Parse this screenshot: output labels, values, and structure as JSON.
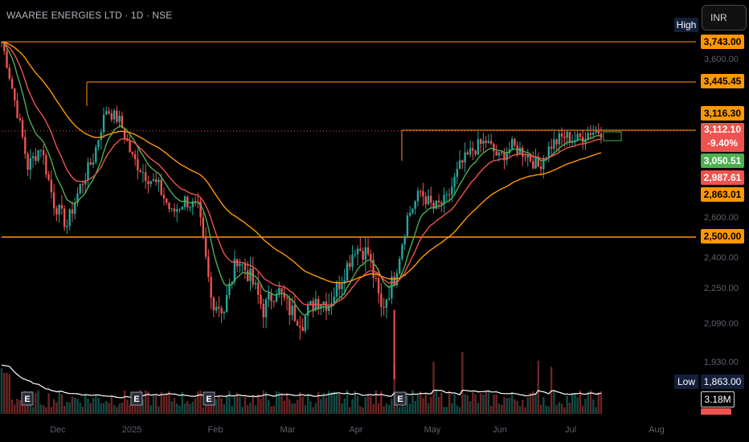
{
  "header": {
    "title": "WAAREE ENERGIES LTD · 1D · NSE"
  },
  "currency": "INR",
  "labels": {
    "high": "High",
    "low": "Low"
  },
  "price_tags": {
    "high_value": "3,743.00",
    "level_3445": "3,445.45",
    "recent_high": "3,116.30",
    "last_price": "3,112.10",
    "change_pct": "-9.40%",
    "ema_short": "3,050.51",
    "ema_mid": "2,987.61",
    "ema_long": "2,863.01",
    "support": "2,500.00",
    "low_value": "1,863.00",
    "volume": "3.18M"
  },
  "colors": {
    "bull": "#26a69a",
    "bear": "#ef5350",
    "level": "#ff9800",
    "ema_short": "#4caf50",
    "ema_mid": "#ef5350",
    "ema_long": "#ff9800",
    "volume_ma": "#ffffff"
  },
  "chart_data": {
    "type": "candlestick",
    "title": "WAAREE ENERGIES LTD · 1D · NSE",
    "y_ticks": [
      "3,600.00",
      "2,600.00",
      "2,400.00",
      "2,250.00",
      "2,090.00",
      "1,930.00"
    ],
    "y_tick_values": [
      3600,
      2600,
      2400,
      2250,
      2090,
      1930
    ],
    "x_ticks": [
      "Dec",
      "2025",
      "Feb",
      "Mar",
      "Apr",
      "May",
      "Jun",
      "Jul",
      "Aug"
    ],
    "ylim": [
      1780,
      3800
    ],
    "horizontal_levels": [
      3743.0,
      3445.45,
      3116.3,
      2500.0
    ],
    "last_price": 3112.1,
    "change_pct": -9.4,
    "earnings_markers": [
      "E",
      "E",
      "E",
      "E"
    ],
    "series": [
      {
        "name": "Price",
        "anchors": [
          [
            0,
            3743
          ],
          [
            5,
            3320
          ],
          [
            10,
            2900
          ],
          [
            15,
            3020
          ],
          [
            20,
            2680
          ],
          [
            25,
            2560
          ],
          [
            30,
            2780
          ],
          [
            35,
            2950
          ],
          [
            40,
            3260
          ],
          [
            45,
            3180
          ],
          [
            50,
            2950
          ],
          [
            55,
            2850
          ],
          [
            60,
            2780
          ],
          [
            65,
            2620
          ],
          [
            70,
            2700
          ],
          [
            75,
            2650
          ],
          [
            80,
            2200
          ],
          [
            85,
            2150
          ],
          [
            90,
            2400
          ],
          [
            95,
            2300
          ],
          [
            100,
            2150
          ],
          [
            105,
            2250
          ],
          [
            110,
            2150
          ],
          [
            115,
            2100
          ],
          [
            120,
            2200
          ],
          [
            125,
            2180
          ],
          [
            130,
            2300
          ],
          [
            135,
            2450
          ],
          [
            140,
            2420
          ],
          [
            145,
            2150
          ],
          [
            150,
            2300
          ],
          [
            155,
            2600
          ],
          [
            160,
            2750
          ],
          [
            165,
            2650
          ],
          [
            170,
            2700
          ],
          [
            175,
            2900
          ],
          [
            180,
            3000
          ],
          [
            185,
            3050
          ],
          [
            190,
            2950
          ],
          [
            195,
            3020
          ],
          [
            200,
            2980
          ],
          [
            205,
            2900
          ],
          [
            210,
            3030
          ],
          [
            215,
            3080
          ],
          [
            220,
            3060
          ],
          [
            225,
            3110
          ],
          [
            228,
            3112
          ]
        ]
      }
    ]
  }
}
